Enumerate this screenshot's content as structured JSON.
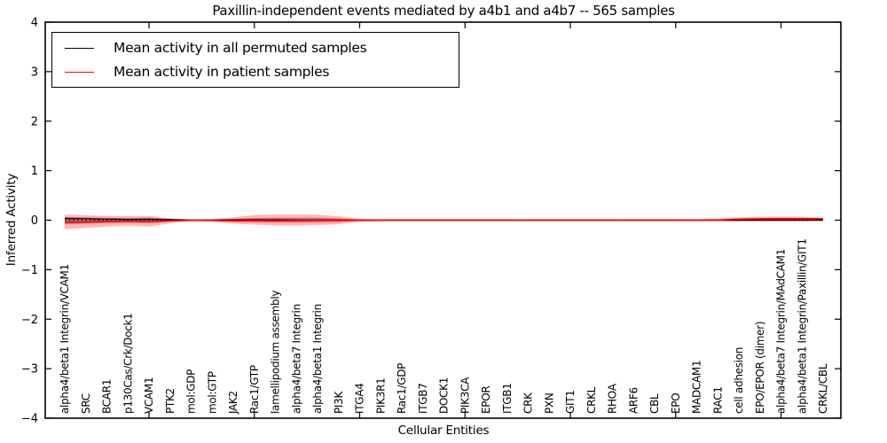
{
  "figure": {
    "background": "#ffffff"
  },
  "chart_data": {
    "type": "line",
    "title": "Paxillin-independent events mediated by a4b1 and a4b7 -- 565 samples",
    "xlabel": "Cellular Entities",
    "ylabel": "Inferred Activity",
    "ylim": [
      -4,
      4
    ],
    "yticks": [
      -4,
      -3,
      -2,
      -1,
      0,
      1,
      2,
      3,
      4
    ],
    "ytick_labels": [
      "−4",
      "−3",
      "−2",
      "−1",
      "0",
      "1",
      "2",
      "3",
      "4"
    ],
    "xticks_values": [
      5,
      10,
      15,
      20,
      25,
      30,
      35
    ],
    "grid": false,
    "legend_position": "upper left",
    "colors": {
      "permuted_line": "#000000",
      "patient_line": "#ff0000",
      "patient_band_outer": "rgba(255,45,45,0.35)",
      "patient_band_inner": "rgba(230,35,35,0.50)",
      "permuted_band": "rgba(70,70,70,0.28)",
      "zero_line": "#000000"
    },
    "categories": [
      "alpha4/beta1 Integrin/VCAM1",
      "SRC",
      "BCAR1",
      "p130Cas/Crk/Dock1",
      "VCAM1",
      "PTK2",
      "mol:GDP",
      "mol:GTP",
      "JAK2",
      "Rac1/GTP",
      "lamellipodium assembly",
      "alpha4/beta7 Integrin",
      "alpha4/beta1 Integrin",
      "PI3K",
      "ITGA4",
      "PIK3R1",
      "Rac1/GDP",
      "ITGB7",
      "DOCK1",
      "PIK3CA",
      "EPOR",
      "ITGB1",
      "CRK",
      "PXN",
      "GIT1",
      "CRKL",
      "RHOA",
      "ARF6",
      "CBL",
      "EPO",
      "MADCAM1",
      "RAC1",
      "cell adhesion",
      "EPO/EPOR (dimer)",
      "alpha4/beta7 Integrin/MAdCAM1",
      "alpha4/beta1 Integrin/Paxillin/GIT1",
      "CRKL/CBL"
    ],
    "series": [
      {
        "name": "Mean activity in all permuted samples",
        "color": "#000000",
        "values": [
          0.035,
          0.03,
          0.022,
          0.016,
          0.02,
          0.01,
          0.002,
          0.002,
          0.006,
          0.008,
          0.006,
          0.004,
          0.002,
          0.002,
          0,
          0,
          0,
          0,
          0,
          0,
          0,
          0,
          0,
          0,
          0,
          0,
          0,
          0,
          0,
          0,
          0,
          0,
          0.002,
          0.003,
          0.003,
          0.003,
          0.002
        ]
      },
      {
        "name": "Mean activity in patient samples",
        "color": "#ff0000",
        "values": [
          -0.045,
          -0.038,
          -0.03,
          -0.022,
          -0.03,
          -0.014,
          -0.002,
          -0.006,
          -0.012,
          -0.008,
          -0.012,
          -0.008,
          -0.006,
          -0.006,
          -0.003,
          0,
          0,
          0,
          0,
          0,
          0,
          0,
          0,
          0,
          0,
          0,
          0,
          0,
          0,
          0,
          0,
          0.005,
          0.02,
          0.028,
          0.03,
          0.03,
          0.028
        ]
      }
    ],
    "bands": [
      {
        "name": "patient-ci-outer",
        "color_key": "patient_band_outer",
        "upper": [
          0.11,
          0.1,
          0.085,
          0.08,
          0.085,
          0.042,
          0.012,
          0.022,
          0.06,
          0.1,
          0.11,
          0.112,
          0.108,
          0.08,
          0.032,
          0.02,
          0.02,
          0.02,
          0.02,
          0.02,
          0.02,
          0.02,
          0.02,
          0.02,
          0.02,
          0.02,
          0.02,
          0.02,
          0.02,
          0.02,
          0.02,
          0.03,
          0.06,
          0.07,
          0.072,
          0.072,
          0.05
        ],
        "lower": [
          -0.18,
          -0.155,
          -0.13,
          -0.11,
          -0.13,
          -0.062,
          -0.015,
          -0.032,
          -0.072,
          -0.09,
          -0.108,
          -0.11,
          -0.1,
          -0.08,
          -0.032,
          -0.02,
          -0.02,
          -0.02,
          -0.02,
          -0.02,
          -0.02,
          -0.02,
          -0.02,
          -0.02,
          -0.02,
          -0.02,
          -0.02,
          -0.02,
          -0.02,
          -0.02,
          -0.02,
          -0.025,
          -0.03,
          -0.032,
          -0.032,
          -0.032,
          -0.02
        ]
      },
      {
        "name": "patient-ci-inner",
        "color_key": "patient_band_inner",
        "upper": [
          0.05,
          0.045,
          0.038,
          0.036,
          0.038,
          0.019,
          0.005,
          0.01,
          0.027,
          0.045,
          0.05,
          0.05,
          0.049,
          0.036,
          0.014,
          0.009,
          0.009,
          0.009,
          0.009,
          0.009,
          0.009,
          0.009,
          0.009,
          0.009,
          0.009,
          0.009,
          0.009,
          0.009,
          0.009,
          0.009,
          0.009,
          0.014,
          0.027,
          0.032,
          0.032,
          0.032,
          0.022
        ],
        "lower": [
          -0.08,
          -0.07,
          -0.058,
          -0.05,
          -0.058,
          -0.028,
          -0.007,
          -0.014,
          -0.032,
          -0.04,
          -0.049,
          -0.05,
          -0.045,
          -0.036,
          -0.014,
          -0.009,
          -0.009,
          -0.009,
          -0.009,
          -0.009,
          -0.009,
          -0.009,
          -0.009,
          -0.009,
          -0.009,
          -0.009,
          -0.009,
          -0.009,
          -0.009,
          -0.009,
          -0.009,
          -0.011,
          -0.014,
          -0.014,
          -0.014,
          -0.014,
          -0.009
        ]
      },
      {
        "name": "permuted-ci",
        "color_key": "permuted_band",
        "upper": [
          0.065,
          0.055,
          0.048,
          0.042,
          0.048,
          0.022,
          0.006,
          0.012,
          0.024,
          0.03,
          0.032,
          0.032,
          0.03,
          0.02,
          0.01,
          0.008,
          0.008,
          0.008,
          0.008,
          0.008,
          0.008,
          0.008,
          0.008,
          0.008,
          0.008,
          0.008,
          0.008,
          0.008,
          0.008,
          0.008,
          0.008,
          0.01,
          0.016,
          0.018,
          0.018,
          0.018,
          0.012
        ],
        "lower": [
          -0.045,
          -0.04,
          -0.035,
          -0.03,
          -0.035,
          -0.018,
          -0.005,
          -0.01,
          -0.018,
          -0.024,
          -0.026,
          -0.026,
          -0.024,
          -0.016,
          -0.008,
          -0.006,
          -0.006,
          -0.006,
          -0.006,
          -0.006,
          -0.006,
          -0.006,
          -0.006,
          -0.006,
          -0.006,
          -0.006,
          -0.006,
          -0.006,
          -0.006,
          -0.006,
          -0.006,
          -0.008,
          -0.012,
          -0.014,
          -0.014,
          -0.014,
          -0.009
        ]
      }
    ],
    "zero_line": {
      "y": 0,
      "style": "dotted",
      "color": "#000000"
    },
    "legend": {
      "entries": [
        {
          "label": "Mean activity in all permuted samples",
          "color": "#000000"
        },
        {
          "label": "Mean activity in patient samples",
          "color": "#ff0000"
        }
      ]
    }
  }
}
